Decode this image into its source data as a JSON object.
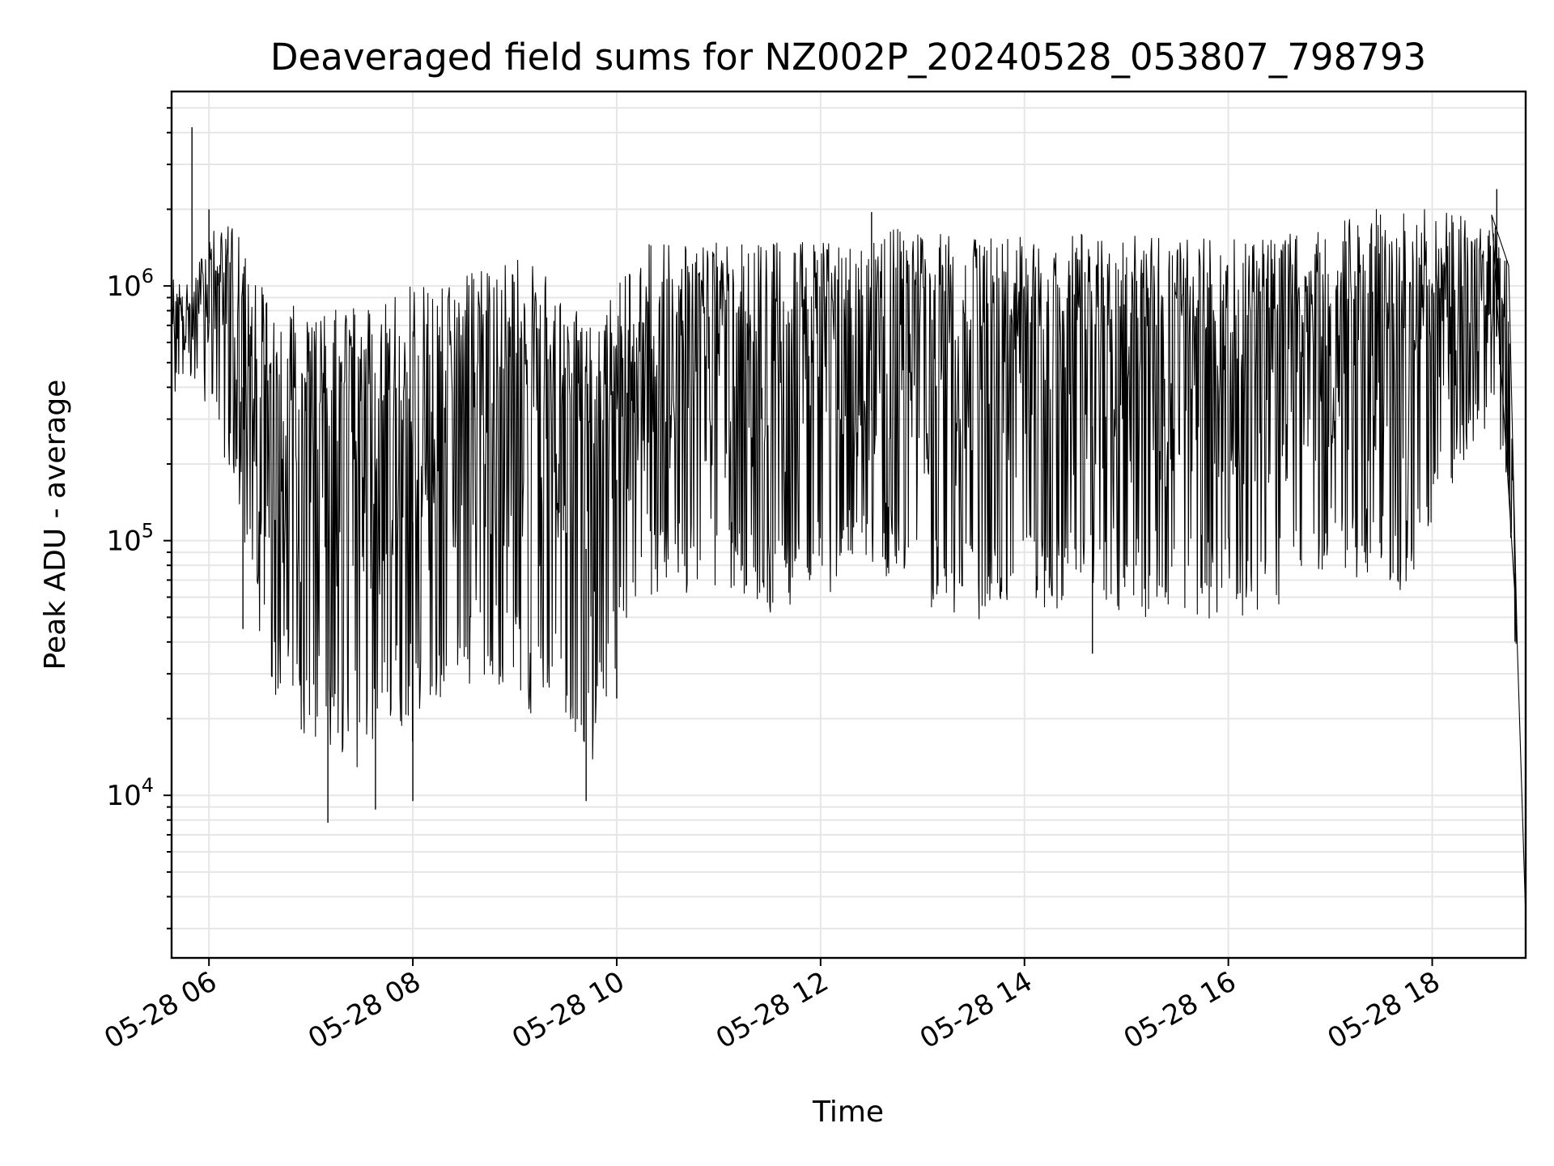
{
  "chart_data": {
    "type": "line",
    "title": "Deaveraged field sums for NZ002P_20240528_053807_798793",
    "xlabel": "Time",
    "ylabel": "Peak ADU - average",
    "yscale": "log",
    "grid": "on",
    "x_axis_type": "datetime",
    "xlim": [
      "2024-05-28 05:38",
      "2024-05-28 18:55"
    ],
    "ylim": [
      2300,
      5800000
    ],
    "x_ticks": [
      {
        "value": "2024-05-28 06:00",
        "label": "05-28 06"
      },
      {
        "value": "2024-05-28 08:00",
        "label": "05-28 08"
      },
      {
        "value": "2024-05-28 10:00",
        "label": "05-28 10"
      },
      {
        "value": "2024-05-28 12:00",
        "label": "05-28 12"
      },
      {
        "value": "2024-05-28 14:00",
        "label": "05-28 14"
      },
      {
        "value": "2024-05-28 16:00",
        "label": "05-28 16"
      },
      {
        "value": "2024-05-28 18:00",
        "label": "05-28 18"
      }
    ],
    "y_ticks": [
      {
        "value": 10000,
        "base": "10",
        "exp": "4"
      },
      {
        "value": 100000,
        "base": "10",
        "exp": "5"
      },
      {
        "value": 1000000,
        "base": "10",
        "exp": "6"
      }
    ],
    "series": [
      {
        "color": "#000000",
        "envelope_time": [
          "05:38",
          "05:50",
          "06:00",
          "06:10",
          "06:20",
          "06:30",
          "06:45",
          "07:00",
          "07:15",
          "07:30",
          "07:45",
          "08:00",
          "08:20",
          "08:40",
          "09:00",
          "09:15",
          "09:30",
          "09:45",
          "10:00",
          "10:15",
          "10:30",
          "11:00",
          "11:30",
          "12:00",
          "12:30",
          "12:42",
          "13:00",
          "13:30",
          "14:00",
          "14:30",
          "15:00",
          "15:30",
          "16:00",
          "16:30",
          "16:50",
          "17:00",
          "17:20",
          "17:40",
          "18:00",
          "18:20",
          "18:35",
          "18:45",
          "18:50",
          "18:55"
        ],
        "envelope_high": [
          1100000,
          1000000,
          1700000,
          1800000,
          1600000,
          1000000,
          900000,
          800000,
          820000,
          850000,
          950000,
          1000000,
          1050000,
          1200000,
          1300000,
          1150000,
          900000,
          700000,
          1000000,
          1500000,
          1600000,
          1500000,
          1500000,
          1500000,
          1500000,
          1700000,
          1600000,
          1600000,
          1600000,
          1600000,
          1600000,
          1550000,
          1550000,
          1600000,
          1700000,
          1700000,
          2000000,
          2000000,
          2000000,
          1900000,
          1900000,
          1200000,
          40000,
          3300
        ],
        "envelope_low": [
          350000,
          400000,
          300000,
          200000,
          100000,
          30000,
          20000,
          14000,
          12000,
          13000,
          15000,
          14000,
          20000,
          25000,
          22000,
          18000,
          15000,
          11000,
          30000,
          60000,
          60000,
          55000,
          50000,
          55000,
          70000,
          70000,
          50000,
          45000,
          50000,
          50000,
          48000,
          48000,
          48000,
          50000,
          55000,
          80000,
          60000,
          55000,
          100000,
          200000,
          300000,
          150000,
          20000,
          3300
        ],
        "extremes": [
          {
            "time": "05:50",
            "value": 4200000
          },
          {
            "time": "06:00",
            "value": 2000000
          },
          {
            "time": "06:20",
            "value": 45000
          },
          {
            "time": "07:10",
            "value": 7800
          },
          {
            "time": "07:38",
            "value": 8800
          },
          {
            "time": "08:00",
            "value": 9500
          },
          {
            "time": "09:42",
            "value": 9500
          },
          {
            "time": "10:00",
            "value": 24000
          },
          {
            "time": "12:30",
            "value": 1950000
          },
          {
            "time": "14:40",
            "value": 36000
          },
          {
            "time": "18:38",
            "value": 2400000
          },
          {
            "time": "18:55",
            "value": 3300
          }
        ]
      }
    ]
  }
}
